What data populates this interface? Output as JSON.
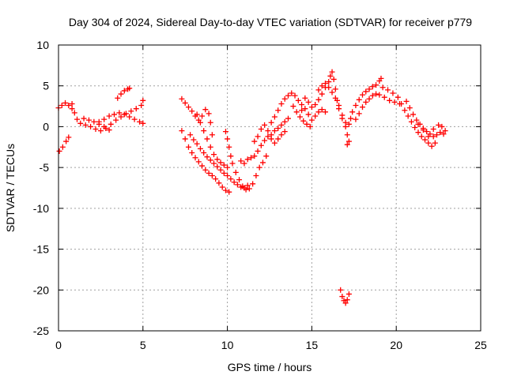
{
  "chart_data": {
    "type": "scatter",
    "title": "Day 304 of 2024, Sidereal Day-to-day VTEC variation (SDTVAR) for receiver p779",
    "xlabel": "GPS time / hours",
    "ylabel": "SDTVAR / TECUs",
    "xlim": [
      0,
      25
    ],
    "ylim": [
      -25,
      10
    ],
    "xticks": [
      0,
      5,
      10,
      15,
      20,
      25
    ],
    "yticks": [
      -25,
      -20,
      -15,
      -10,
      -5,
      0,
      5,
      10
    ],
    "grid": true,
    "marker": "+",
    "color": "#ff0000",
    "series": [
      {
        "name": "SDTVAR",
        "points": [
          [
            0.0,
            2.3
          ],
          [
            0.2,
            2.6
          ],
          [
            0.4,
            2.9
          ],
          [
            0.6,
            2.6
          ],
          [
            0.8,
            2.2
          ],
          [
            0.05,
            -3.0
          ],
          [
            0.25,
            -2.5
          ],
          [
            0.45,
            -1.8
          ],
          [
            0.6,
            -1.3
          ],
          [
            0.8,
            2.8
          ],
          [
            0.95,
            1.7
          ],
          [
            1.1,
            0.9
          ],
          [
            1.3,
            0.4
          ],
          [
            1.6,
            0.2
          ],
          [
            1.9,
            0.0
          ],
          [
            2.2,
            -0.3
          ],
          [
            2.5,
            -0.5
          ],
          [
            2.8,
            -0.2
          ],
          [
            3.1,
            0.3
          ],
          [
            3.4,
            0.8
          ],
          [
            3.7,
            1.2
          ],
          [
            4.0,
            1.6
          ],
          [
            4.3,
            1.9
          ],
          [
            4.6,
            2.2
          ],
          [
            4.9,
            2.6
          ],
          [
            5.0,
            3.2
          ],
          [
            2.4,
            0.6
          ],
          [
            2.7,
            0.9
          ],
          [
            3.0,
            1.3
          ],
          [
            3.3,
            1.5
          ],
          [
            3.6,
            1.7
          ],
          [
            3.9,
            1.5
          ],
          [
            4.2,
            1.2
          ],
          [
            4.5,
            0.9
          ],
          [
            4.8,
            0.6
          ],
          [
            5.0,
            0.4
          ],
          [
            1.5,
            1.0
          ],
          [
            1.8,
            0.8
          ],
          [
            2.1,
            0.6
          ],
          [
            2.4,
            0.3
          ],
          [
            2.7,
            0.0
          ],
          [
            3.0,
            -0.4
          ],
          [
            3.5,
            3.5
          ],
          [
            3.7,
            4.0
          ],
          [
            3.9,
            4.4
          ],
          [
            4.1,
            4.6
          ],
          [
            4.2,
            4.7
          ],
          [
            7.3,
            3.4
          ],
          [
            7.5,
            2.9
          ],
          [
            7.7,
            2.4
          ],
          [
            7.9,
            1.9
          ],
          [
            8.1,
            1.3
          ],
          [
            8.3,
            0.8
          ],
          [
            8.5,
            1.3
          ],
          [
            8.7,
            2.1
          ],
          [
            8.9,
            1.6
          ],
          [
            9.0,
            0.5
          ],
          [
            9.1,
            -1.0
          ],
          [
            7.3,
            -0.5
          ],
          [
            7.5,
            -1.5
          ],
          [
            7.7,
            -2.5
          ],
          [
            7.9,
            -3.2
          ],
          [
            8.1,
            -3.8
          ],
          [
            8.3,
            -4.3
          ],
          [
            8.5,
            -4.8
          ],
          [
            8.7,
            -5.3
          ],
          [
            8.9,
            -5.7
          ],
          [
            9.1,
            -6.0
          ],
          [
            9.3,
            -6.4
          ],
          [
            9.5,
            -6.9
          ],
          [
            9.7,
            -7.4
          ],
          [
            9.9,
            -7.8
          ],
          [
            10.1,
            -8.0
          ],
          [
            7.8,
            -1.0
          ],
          [
            8.0,
            -1.6
          ],
          [
            8.2,
            -2.1
          ],
          [
            8.4,
            -2.7
          ],
          [
            8.6,
            -3.2
          ],
          [
            8.8,
            -3.7
          ],
          [
            9.0,
            -4.1
          ],
          [
            9.2,
            -4.5
          ],
          [
            9.4,
            -4.9
          ],
          [
            9.6,
            -5.3
          ],
          [
            9.8,
            -5.7
          ],
          [
            10.0,
            -6.0
          ],
          [
            10.2,
            -6.4
          ],
          [
            10.4,
            -6.8
          ],
          [
            10.6,
            -7.1
          ],
          [
            10.8,
            -7.4
          ],
          [
            11.0,
            -7.5
          ],
          [
            11.2,
            -7.2
          ],
          [
            8.2,
            1.5
          ],
          [
            8.4,
            0.5
          ],
          [
            8.6,
            -0.5
          ],
          [
            8.8,
            -1.5
          ],
          [
            9.0,
            -2.5
          ],
          [
            9.2,
            -3.4
          ],
          [
            9.4,
            -4.0
          ],
          [
            9.6,
            -4.4
          ],
          [
            9.8,
            -4.7
          ],
          [
            10.0,
            -5.0
          ],
          [
            9.9,
            -0.6
          ],
          [
            10.0,
            -1.5
          ],
          [
            10.1,
            -2.5
          ],
          [
            10.2,
            -3.6
          ],
          [
            10.3,
            -4.5
          ],
          [
            10.5,
            -5.6
          ],
          [
            10.7,
            -6.5
          ],
          [
            10.9,
            -7.3
          ],
          [
            11.1,
            -7.7
          ],
          [
            11.3,
            -7.6
          ],
          [
            11.5,
            -7.0
          ],
          [
            11.7,
            -6.0
          ],
          [
            11.9,
            -5.0
          ],
          [
            12.1,
            -4.4
          ],
          [
            12.3,
            -3.6
          ],
          [
            10.8,
            -4.2
          ],
          [
            11.0,
            -4.5
          ],
          [
            11.2,
            -4.0
          ],
          [
            11.4,
            -3.8
          ],
          [
            11.6,
            -3.6
          ],
          [
            11.8,
            -3.0
          ],
          [
            12.0,
            -2.3
          ],
          [
            12.2,
            -1.7
          ],
          [
            12.4,
            -1.2
          ],
          [
            12.6,
            -1.0
          ],
          [
            12.8,
            -0.5
          ],
          [
            13.0,
            -0.2
          ],
          [
            13.2,
            0.2
          ],
          [
            13.4,
            0.6
          ],
          [
            13.6,
            1.0
          ],
          [
            11.6,
            -1.8
          ],
          [
            11.8,
            -1.2
          ],
          [
            12.0,
            -0.3
          ],
          [
            12.2,
            0.2
          ],
          [
            12.4,
            -0.5
          ],
          [
            12.6,
            -1.5
          ],
          [
            12.8,
            -2.0
          ],
          [
            13.0,
            -1.5
          ],
          [
            13.2,
            -1.0
          ],
          [
            13.4,
            -0.6
          ],
          [
            12.6,
            0.5
          ],
          [
            12.8,
            1.2
          ],
          [
            13.0,
            2.0
          ],
          [
            13.2,
            2.8
          ],
          [
            13.4,
            3.4
          ],
          [
            13.6,
            3.8
          ],
          [
            13.8,
            4.1
          ],
          [
            14.0,
            3.8
          ],
          [
            14.2,
            3.2
          ],
          [
            14.4,
            2.7
          ],
          [
            13.9,
            2.5
          ],
          [
            14.1,
            1.8
          ],
          [
            14.3,
            1.2
          ],
          [
            14.5,
            0.7
          ],
          [
            14.7,
            0.3
          ],
          [
            14.9,
            0.0
          ],
          [
            14.8,
            1.5
          ],
          [
            14.6,
            2.2
          ],
          [
            14.4,
            2.0
          ],
          [
            14.6,
            3.5
          ],
          [
            14.8,
            3.0
          ],
          [
            15.0,
            2.4
          ],
          [
            15.2,
            2.7
          ],
          [
            15.4,
            3.3
          ],
          [
            15.6,
            4.0
          ],
          [
            15.8,
            4.8
          ],
          [
            16.0,
            5.5
          ],
          [
            16.1,
            6.2
          ],
          [
            16.2,
            6.7
          ],
          [
            15.4,
            4.5
          ],
          [
            15.6,
            5.0
          ],
          [
            15.8,
            5.3
          ],
          [
            16.0,
            4.8
          ],
          [
            16.2,
            4.2
          ],
          [
            15.0,
            0.8
          ],
          [
            15.2,
            1.3
          ],
          [
            15.4,
            1.8
          ],
          [
            15.6,
            2.1
          ],
          [
            15.8,
            1.8
          ],
          [
            16.3,
            5.8
          ],
          [
            16.4,
            4.6
          ],
          [
            16.5,
            3.2
          ],
          [
            16.6,
            2.2
          ],
          [
            16.8,
            1.0
          ],
          [
            17.0,
            0.0
          ],
          [
            17.1,
            -1.0
          ],
          [
            17.2,
            -1.8
          ],
          [
            17.1,
            -2.2
          ],
          [
            16.4,
            3.5
          ],
          [
            16.6,
            2.6
          ],
          [
            16.8,
            1.4
          ],
          [
            17.0,
            0.5
          ],
          [
            17.2,
            0.3
          ],
          [
            17.3,
            1.0
          ],
          [
            17.4,
            1.8
          ],
          [
            17.6,
            2.6
          ],
          [
            17.8,
            3.3
          ],
          [
            18.0,
            3.9
          ],
          [
            18.2,
            4.3
          ],
          [
            18.4,
            4.6
          ],
          [
            18.6,
            4.9
          ],
          [
            18.8,
            5.1
          ],
          [
            19.0,
            5.6
          ],
          [
            19.1,
            5.9
          ],
          [
            17.6,
            0.9
          ],
          [
            17.8,
            1.6
          ],
          [
            18.0,
            2.4
          ],
          [
            18.2,
            3.0
          ],
          [
            18.4,
            3.4
          ],
          [
            18.6,
            3.8
          ],
          [
            18.8,
            4.0
          ],
          [
            19.0,
            3.9
          ],
          [
            19.3,
            3.6
          ],
          [
            19.6,
            3.2
          ],
          [
            19.9,
            3.0
          ],
          [
            20.2,
            2.8
          ],
          [
            19.2,
            4.8
          ],
          [
            19.5,
            4.5
          ],
          [
            19.8,
            4.1
          ],
          [
            20.1,
            3.6
          ],
          [
            20.3,
            2.8
          ],
          [
            20.5,
            2.0
          ],
          [
            20.7,
            1.3
          ],
          [
            20.9,
            0.6
          ],
          [
            21.1,
            -0.1
          ],
          [
            21.3,
            -0.7
          ],
          [
            21.5,
            -1.2
          ],
          [
            21.7,
            -1.6
          ],
          [
            21.9,
            -2.0
          ],
          [
            22.1,
            -2.4
          ],
          [
            22.3,
            -2.0
          ],
          [
            20.6,
            3.1
          ],
          [
            20.8,
            2.3
          ],
          [
            21.0,
            1.5
          ],
          [
            21.2,
            0.8
          ],
          [
            21.4,
            0.3
          ],
          [
            21.6,
            -0.2
          ],
          [
            21.8,
            -0.6
          ],
          [
            22.0,
            -0.9
          ],
          [
            22.2,
            -1.2
          ],
          [
            22.4,
            -1.0
          ],
          [
            22.6,
            -0.7
          ],
          [
            22.8,
            -0.9
          ],
          [
            21.3,
            0.3
          ],
          [
            21.6,
            -0.4
          ],
          [
            21.9,
            -1.2
          ],
          [
            22.2,
            -0.3
          ],
          [
            22.5,
            0.2
          ],
          [
            22.7,
            0.0
          ],
          [
            22.9,
            -0.5
          ],
          [
            16.7,
            -20.0
          ],
          [
            16.8,
            -20.8
          ],
          [
            16.9,
            -21.3
          ],
          [
            17.0,
            -21.6
          ],
          [
            17.1,
            -21.2
          ],
          [
            17.2,
            -20.5
          ]
        ]
      }
    ]
  }
}
